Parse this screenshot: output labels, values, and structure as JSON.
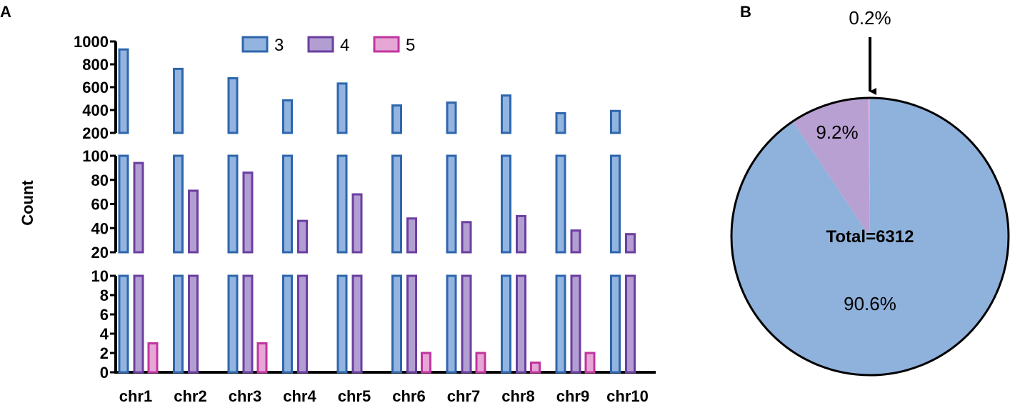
{
  "panels": {
    "a_label": "A",
    "b_label": "B"
  },
  "colors": {
    "s3_fill": "#92b4de",
    "s3_stroke": "#2e66ad",
    "s4_fill": "#b39ed2",
    "s4_stroke": "#6a3fa0",
    "s5_fill": "#e6a6d6",
    "s5_stroke": "#c0359e",
    "pie_3": "#8fb2dc",
    "pie_4": "#b9a0d3",
    "pie_5": "#e6a6d6"
  },
  "chart_data": [
    {
      "type": "bar",
      "panel": "A",
      "ylabel": "Count",
      "axis": "broken",
      "segments": [
        {
          "range": [
            200,
            1000
          ],
          "ticks": [
            "1000",
            "800",
            "600",
            "400",
            "200"
          ]
        },
        {
          "range": [
            20,
            100
          ],
          "ticks": [
            "100",
            "80",
            "60",
            "40",
            "20"
          ]
        },
        {
          "range": [
            0,
            10
          ],
          "ticks": [
            "10",
            "8",
            "6",
            "4",
            "2",
            "0"
          ]
        }
      ],
      "categories": [
        "chr1",
        "chr2",
        "chr3",
        "chr4",
        "chr5",
        "chr6",
        "chr7",
        "chr8",
        "chr9",
        "chr10"
      ],
      "series": [
        {
          "name": "3",
          "values": [
            930,
            760,
            678,
            485,
            632,
            440,
            465,
            527,
            372,
            392
          ]
        },
        {
          "name": "4",
          "values": [
            94,
            71,
            86,
            46,
            68,
            48,
            45,
            50,
            38,
            35
          ]
        },
        {
          "name": "5",
          "values": [
            3,
            0,
            3,
            0,
            0,
            2,
            2,
            1,
            2,
            0
          ]
        }
      ],
      "legend": "top-center"
    },
    {
      "type": "pie",
      "panel": "B",
      "center_label": "Total=6312",
      "slices": [
        {
          "name": "3",
          "value": 90.6,
          "label": "90.6%"
        },
        {
          "name": "4",
          "value": 9.2,
          "label": "9.2%"
        },
        {
          "name": "5",
          "value": 0.2,
          "label": "0.2%"
        }
      ],
      "annotation": "arrow pointing to 0.2% slice"
    }
  ]
}
